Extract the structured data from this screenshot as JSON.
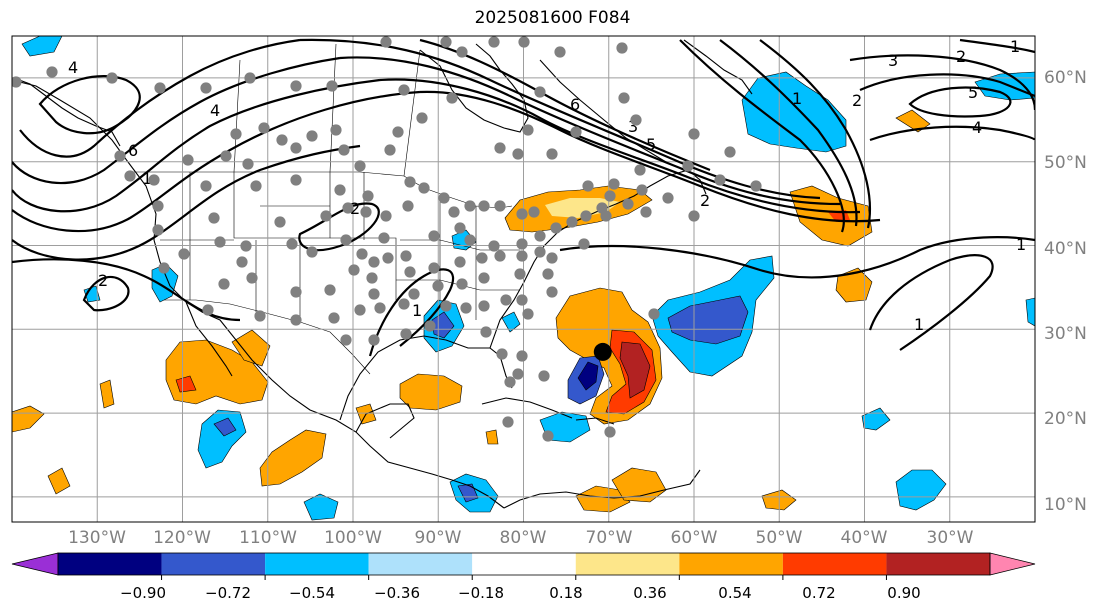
{
  "title": "2025081600 F084",
  "map": {
    "projection": "equidistant cylindrical",
    "lon_range": [
      -140,
      -20
    ],
    "lat_range": [
      7,
      65
    ],
    "longitude_labels": [
      "130°W",
      "120°W",
      "110°W",
      "100°W",
      "90°W",
      "80°W",
      "70°W",
      "60°W",
      "50°W",
      "40°W",
      "30°W"
    ],
    "latitude_labels": [
      "60°N",
      "50°N",
      "40°N",
      "30°N",
      "20°N",
      "10°N"
    ],
    "gridlines": true,
    "marker": {
      "lon": -70.7,
      "lat": 27.3,
      "color": "#000000"
    },
    "station_dot_color": "#808080"
  },
  "contour_labels": [
    "4",
    "4",
    "6",
    "2",
    "2",
    "2",
    "1",
    "6",
    "5",
    "3",
    "2",
    "1",
    "1",
    "3",
    "2",
    "5",
    "4",
    "1",
    "1",
    "1"
  ],
  "colorbar": {
    "extend": "both",
    "colors": [
      "#9a2fd6",
      "#000080",
      "#3458cc",
      "#00bfff",
      "#aee1fb",
      "#ffffff",
      "#fde68a",
      "#ffa500",
      "#ff3b00",
      "#b22222",
      "#ff85b0"
    ],
    "tick_labels": [
      "−0.90",
      "−0.72",
      "−0.54",
      "−0.36",
      "−0.18",
      "0.18",
      "0.36",
      "0.54",
      "0.72",
      "0.90"
    ]
  }
}
